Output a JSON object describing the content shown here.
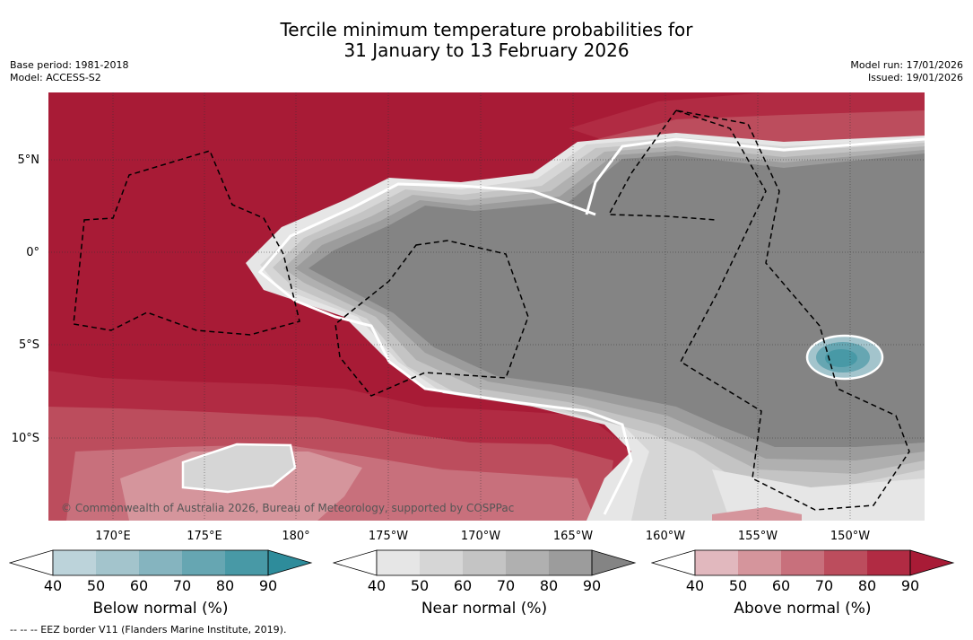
{
  "title_line1": "Tercile minimum temperature probabilities for",
  "title_line2": "31 January to 13 February 2026",
  "meta_left": {
    "base_period": "Base period: 1981-2018",
    "model": "Model: ACCESS-S2"
  },
  "meta_right": {
    "model_run": "Model run: 17/01/2026",
    "issued": "Issued: 19/01/2026"
  },
  "map": {
    "copyright": "© Commonwealth of Australia 2026, Bureau of Meteorology, supported by COSPPac",
    "lat_labels": [
      "5°N",
      "0°",
      "5°S",
      "10°S"
    ],
    "lon_labels": [
      "170°E",
      "175°E",
      "180°",
      "175°W",
      "170°W",
      "165°W",
      "160°W",
      "155°W",
      "150°W"
    ],
    "colors": {
      "above": [
        "#e1b8be",
        "#d5959c",
        "#c8707c",
        "#bc4d5d",
        "#b12b43",
        "#a81b36"
      ],
      "near": [
        "#e6e6e6",
        "#d6d6d6",
        "#c4c4c4",
        "#b0b0b0",
        "#9c9c9c",
        "#848484"
      ],
      "below": [
        "#bcd3da",
        "#a3c4cc",
        "#85b4bf",
        "#66a6b2",
        "#4899a6",
        "#2e8c9b"
      ]
    }
  },
  "colorbars": [
    {
      "label": "Below normal (%)",
      "ticks": [
        "40",
        "50",
        "60",
        "70",
        "80",
        "90"
      ]
    },
    {
      "label": "Near normal (%)",
      "ticks": [
        "40",
        "50",
        "60",
        "70",
        "80",
        "90"
      ]
    },
    {
      "label": "Above normal (%)",
      "ticks": [
        "40",
        "50",
        "60",
        "70",
        "80",
        "90"
      ]
    }
  ],
  "footnote": "--  --  -- EEZ border V11 (Flanders Marine Institute, 2019)."
}
